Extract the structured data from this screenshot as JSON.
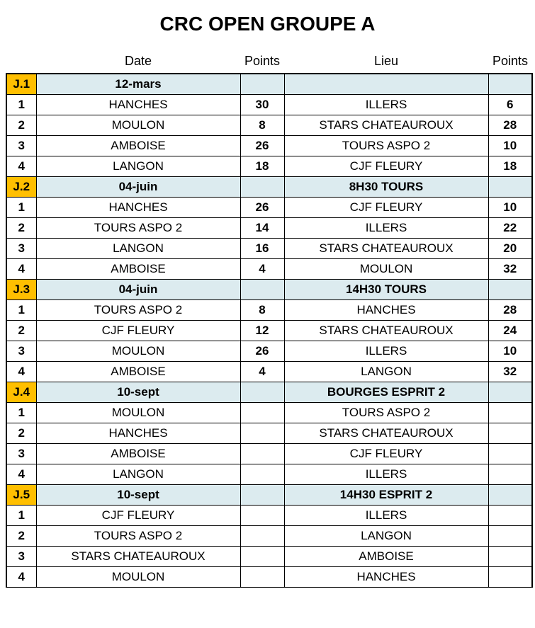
{
  "title": "CRC OPEN GROUPE A",
  "columns": [
    "",
    "Date",
    "Points",
    "Lieu",
    "Points"
  ],
  "colors": {
    "journee_bg": "#ffbf00",
    "header_fill_bg": "#dcebef",
    "border": "#000000",
    "text": "#000000",
    "background": "#ffffff"
  },
  "journees": [
    {
      "code": "J.1",
      "date": "12-mars",
      "lieu": "",
      "matches": [
        {
          "n": "1",
          "teamA": "HANCHES",
          "ptsA": "30",
          "teamB": "ILLERS",
          "ptsB": "6"
        },
        {
          "n": "2",
          "teamA": "MOULON",
          "ptsA": "8",
          "teamB": "STARS CHATEAUROUX",
          "ptsB": "28"
        },
        {
          "n": "3",
          "teamA": "AMBOISE",
          "ptsA": "26",
          "teamB": "TOURS ASPO 2",
          "ptsB": "10"
        },
        {
          "n": "4",
          "teamA": "LANGON",
          "ptsA": "18",
          "teamB": "CJF FLEURY",
          "ptsB": "18"
        }
      ]
    },
    {
      "code": "J.2",
      "date": "04-juin",
      "lieu": "8H30 TOURS",
      "matches": [
        {
          "n": "1",
          "teamA": "HANCHES",
          "ptsA": "26",
          "teamB": "CJF FLEURY",
          "ptsB": "10"
        },
        {
          "n": "2",
          "teamA": "TOURS ASPO 2",
          "ptsA": "14",
          "teamB": "ILLERS",
          "ptsB": "22"
        },
        {
          "n": "3",
          "teamA": "LANGON",
          "ptsA": "16",
          "teamB": "STARS CHATEAUROUX",
          "ptsB": "20"
        },
        {
          "n": "4",
          "teamA": "AMBOISE",
          "ptsA": "4",
          "teamB": "MOULON",
          "ptsB": "32"
        }
      ]
    },
    {
      "code": "J.3",
      "date": "04-juin",
      "lieu": "14H30 TOURS",
      "matches": [
        {
          "n": "1",
          "teamA": "TOURS ASPO 2",
          "ptsA": "8",
          "teamB": "HANCHES",
          "ptsB": "28"
        },
        {
          "n": "2",
          "teamA": "CJF FLEURY",
          "ptsA": "12",
          "teamB": "STARS CHATEAUROUX",
          "ptsB": "24"
        },
        {
          "n": "3",
          "teamA": "MOULON",
          "ptsA": "26",
          "teamB": "ILLERS",
          "ptsB": "10"
        },
        {
          "n": "4",
          "teamA": "AMBOISE",
          "ptsA": "4",
          "teamB": "LANGON",
          "ptsB": "32"
        }
      ]
    },
    {
      "code": "J.4",
      "date": "10-sept",
      "lieu": "BOURGES ESPRIT 2",
      "matches": [
        {
          "n": "1",
          "teamA": "MOULON",
          "ptsA": "",
          "teamB": "TOURS ASPO 2",
          "ptsB": ""
        },
        {
          "n": "2",
          "teamA": "HANCHES",
          "ptsA": "",
          "teamB": "STARS CHATEAUROUX",
          "ptsB": ""
        },
        {
          "n": "3",
          "teamA": "AMBOISE",
          "ptsA": "",
          "teamB": "CJF FLEURY",
          "ptsB": ""
        },
        {
          "n": "4",
          "teamA": "LANGON",
          "ptsA": "",
          "teamB": "ILLERS",
          "ptsB": ""
        }
      ]
    },
    {
      "code": "J.5",
      "date": "10-sept",
      "lieu": "14H30 ESPRIT 2",
      "matches": [
        {
          "n": "1",
          "teamA": "CJF FLEURY",
          "ptsA": "",
          "teamB": "ILLERS",
          "ptsB": ""
        },
        {
          "n": "2",
          "teamA": "TOURS ASPO 2",
          "ptsA": "",
          "teamB": "LANGON",
          "ptsB": ""
        },
        {
          "n": "3",
          "teamA": "STARS CHATEAUROUX",
          "ptsA": "",
          "teamB": "AMBOISE",
          "ptsB": ""
        },
        {
          "n": "4",
          "teamA": "MOULON",
          "ptsA": "",
          "teamB": "HANCHES",
          "ptsB": ""
        }
      ]
    }
  ]
}
